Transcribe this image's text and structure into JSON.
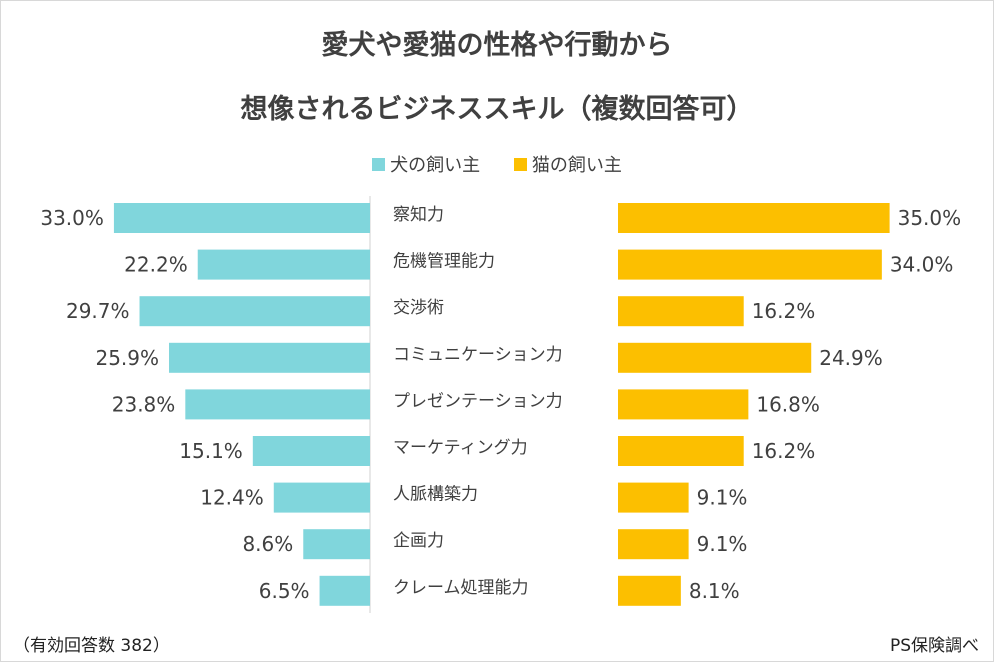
{
  "chart_data": {
    "type": "bar",
    "orientation": "horizontal-butterfly",
    "title": [
      "愛犬や愛猫の性格や行動から",
      "想像されるビジネススキル（複数回答可）"
    ],
    "categories": [
      "察知力",
      "危機管理能力",
      "交渉術",
      "コミュニケーション力",
      "プレゼンテーション力",
      "マーケティング力",
      "人脈構築力",
      "企画力",
      "クレーム処理能力"
    ],
    "series": [
      {
        "name": "犬の飼い主",
        "color": "#80d6dc",
        "values": [
          33.0,
          22.2,
          29.7,
          25.9,
          23.8,
          15.1,
          12.4,
          8.6,
          6.5
        ],
        "labels": [
          "33.0%",
          "22.2%",
          "29.7%",
          "25.9%",
          "23.8%",
          "15.1%",
          "12.4%",
          "8.6%",
          "6.5%"
        ]
      },
      {
        "name": "猫の飼い主",
        "color": "#fcbf00",
        "values": [
          35.0,
          34.0,
          16.2,
          24.9,
          16.8,
          16.2,
          9.1,
          9.1,
          8.1
        ],
        "labels": [
          "35.0%",
          "34.0%",
          "16.2%",
          "24.9%",
          "16.8%",
          "16.2%",
          "9.1%",
          "9.1%",
          "8.1%"
        ]
      }
    ],
    "unit": "%",
    "legend": "top-center",
    "grid": false
  },
  "footer": {
    "note": "（有効回答数 382）",
    "source": "PS保険調べ"
  }
}
